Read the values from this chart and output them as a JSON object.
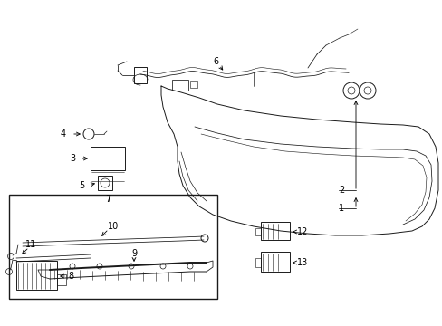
{
  "bg_color": "#ffffff",
  "line_color": "#1a1a1a",
  "fig_width": 4.89,
  "fig_height": 3.6,
  "dpi": 100,
  "fontsize": 7,
  "lw": 0.7
}
